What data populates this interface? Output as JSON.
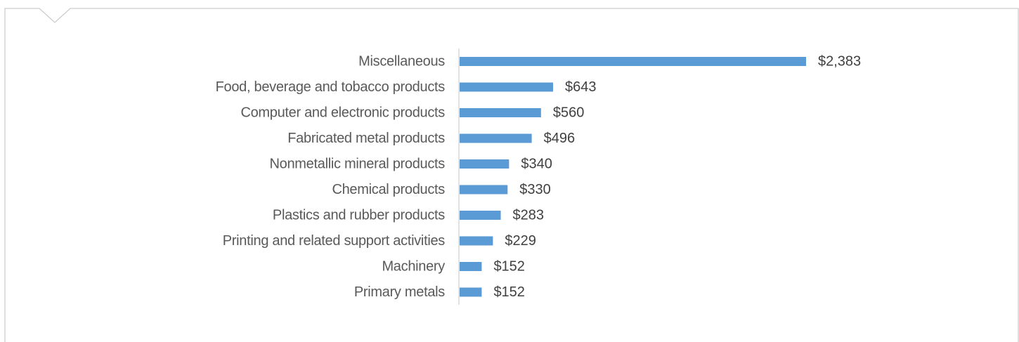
{
  "chart_data": {
    "type": "bar",
    "orientation": "horizontal",
    "title": "",
    "xlabel": "",
    "ylabel": "",
    "categories": [
      "Miscellaneous",
      "Food, beverage and tobacco products",
      "Computer and electronic products",
      "Fabricated metal products",
      "Nonmetallic mineral products",
      "Chemical products",
      "Plastics and rubber products",
      "Printing and related support activities",
      "Machinery",
      "Primary metals"
    ],
    "values": [
      2383,
      643,
      560,
      496,
      340,
      330,
      283,
      229,
      152,
      152
    ],
    "data_labels": [
      "$2,383",
      "$643",
      "$560",
      "$496",
      "$340",
      "$330",
      "$283",
      "$229",
      "$152",
      "$152"
    ],
    "xlim": [
      0,
      2383
    ],
    "grid": false,
    "legend": "none",
    "colors": {
      "bar": "#5B9BD5",
      "category_text": "#595959",
      "value_text": "#404040",
      "axis": "#D9D9D9",
      "frame": "#BFBFBF"
    }
  }
}
